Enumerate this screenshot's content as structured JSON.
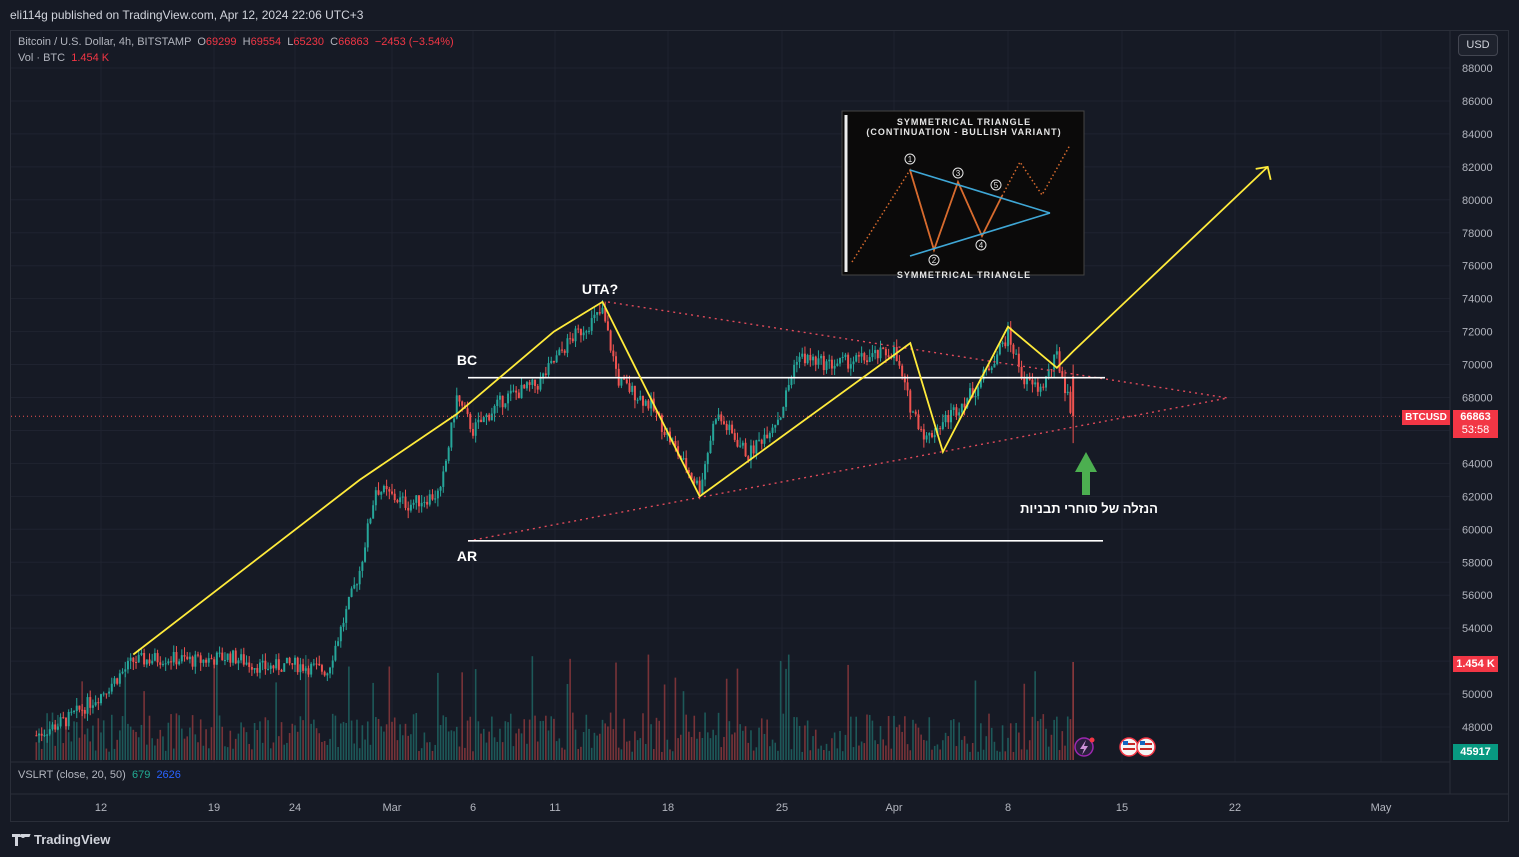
{
  "header": {
    "published": "eli114g published on TradingView.com, Apr 12, 2024 22:06 UTC+3"
  },
  "legend": {
    "symbol": "Bitcoin / U.S. Dollar, 4h, BITSTAMP",
    "open_label": "O",
    "open": "69299",
    "high_label": "H",
    "high": "69554",
    "low_label": "L",
    "low": "65230",
    "close_label": "C",
    "close": "66863",
    "change": "−2453 (−3.54%)",
    "vol_label": "Vol · BTC",
    "vol": "1.454 K"
  },
  "indicator": {
    "name": "VSLRT (close, 20, 50)",
    "v1": "679",
    "v2": "2626"
  },
  "currency_button": "USD",
  "price_tag": {
    "symbol": "BTCUSD",
    "price": "66863",
    "countdown": "53:58"
  },
  "volume_tag": "1.454 K",
  "indicator_tag": "45917",
  "annotations": {
    "uta": "UTA?",
    "bc": "BC",
    "ar": "AR",
    "hebrew": "הנזלה של סוחרי תבניות"
  },
  "inset": {
    "title_line1": "SYMMETRICAL TRIANGLE",
    "title_line2": "(CONTINUATION - BULLISH VARIANT)",
    "footer": "SYMMETRICAL TRIANGLE",
    "labels": [
      "1",
      "2",
      "3",
      "4",
      "5"
    ]
  },
  "branding": "TradingView",
  "colors": {
    "background": "#161a25",
    "grid": "#1f2330",
    "up": "#26a69a",
    "down": "#ef5350",
    "yellow": "#ffeb3b",
    "white": "#ffffff",
    "tri": "#e04a5a",
    "green_arrow": "#4caf50",
    "inset_blue": "#3fa7d6",
    "inset_orange": "#d86b2e"
  },
  "chart_data": {
    "type": "candlestick",
    "y_axis_ticks": [
      48000,
      50000,
      52000,
      54000,
      56000,
      58000,
      60000,
      62000,
      64000,
      66000,
      68000,
      70000,
      72000,
      74000,
      76000,
      78000,
      80000,
      82000,
      84000,
      86000,
      88000
    ],
    "y_axis_labels": [
      "48000",
      "50000",
      "",
      "54000",
      "56000",
      "58000",
      "60000",
      "62000",
      "64000",
      "",
      "68000",
      "70000",
      "72000",
      "74000",
      "76000",
      "78000",
      "80000",
      "82000",
      "84000",
      "86000",
      "88000"
    ],
    "x_axis_labels": [
      "12",
      "19",
      "24",
      "Mar",
      "6",
      "11",
      "18",
      "25",
      "Apr",
      "8",
      "15",
      "22",
      "May"
    ],
    "last_price": 66863,
    "key_levels": {
      "bc": 69200,
      "ar": 59300,
      "uta": 73800
    },
    "path_points": [
      {
        "date": "2024-02-14",
        "price": 52400
      },
      {
        "date": "2024-02-28",
        "price": 63000
      },
      {
        "date": "2024-03-05",
        "price": 67000
      },
      {
        "date": "2024-03-11",
        "price": 72000
      },
      {
        "date": "2024-03-14",
        "price": 73800
      },
      {
        "date": "2024-03-20",
        "price": 62000
      },
      {
        "date": "2024-04-02",
        "price": 71300
      },
      {
        "date": "2024-04-04",
        "price": 64700
      },
      {
        "date": "2024-04-08",
        "price": 72300
      },
      {
        "date": "2024-04-11",
        "price": 69800
      },
      {
        "date": "2024-04-12",
        "price": 70800
      },
      {
        "date": "2024-04-24",
        "price": 82000
      }
    ],
    "candles": [
      {
        "date": "2024-02-08",
        "close": 47500
      },
      {
        "date": "2024-02-10",
        "close": 48500
      },
      {
        "date": "2024-02-12",
        "close": 50000
      },
      {
        "date": "2024-02-14",
        "close": 52000
      },
      {
        "date": "2024-02-16",
        "close": 52200
      },
      {
        "date": "2024-02-18",
        "close": 52000
      },
      {
        "date": "2024-02-20",
        "close": 52300
      },
      {
        "date": "2024-02-22",
        "close": 51600
      },
      {
        "date": "2024-02-24",
        "close": 51800
      },
      {
        "date": "2024-02-26",
        "close": 51400
      },
      {
        "date": "2024-02-28",
        "close": 57500
      },
      {
        "date": "2024-02-29",
        "close": 62500
      },
      {
        "date": "2024-03-02",
        "close": 61500
      },
      {
        "date": "2024-03-04",
        "close": 62200
      },
      {
        "date": "2024-03-05",
        "close": 68000
      },
      {
        "date": "2024-03-06",
        "close": 66000
      },
      {
        "date": "2024-03-08",
        "close": 68000
      },
      {
        "date": "2024-03-10",
        "close": 68800
      },
      {
        "date": "2024-03-12",
        "close": 71500
      },
      {
        "date": "2024-03-14",
        "close": 73200
      },
      {
        "date": "2024-03-15",
        "close": 69000
      },
      {
        "date": "2024-03-17",
        "close": 67500
      },
      {
        "date": "2024-03-19",
        "close": 64000
      },
      {
        "date": "2024-03-20",
        "close": 62500
      },
      {
        "date": "2024-03-21",
        "close": 67000
      },
      {
        "date": "2024-03-23",
        "close": 64500
      },
      {
        "date": "2024-03-25",
        "close": 67000
      },
      {
        "date": "2024-03-26",
        "close": 70500
      },
      {
        "date": "2024-03-28",
        "close": 70000
      },
      {
        "date": "2024-03-30",
        "close": 70300
      },
      {
        "date": "2024-04-01",
        "close": 70800
      },
      {
        "date": "2024-04-02",
        "close": 67500
      },
      {
        "date": "2024-04-03",
        "close": 65500
      },
      {
        "date": "2024-04-05",
        "close": 67500
      },
      {
        "date": "2024-04-06",
        "close": 68500
      },
      {
        "date": "2024-04-08",
        "close": 71800
      },
      {
        "date": "2024-04-09",
        "close": 69000
      },
      {
        "date": "2024-04-10",
        "close": 68500
      },
      {
        "date": "2024-04-11",
        "close": 70500
      },
      {
        "date": "2024-04-12",
        "close": 66863
      }
    ]
  }
}
